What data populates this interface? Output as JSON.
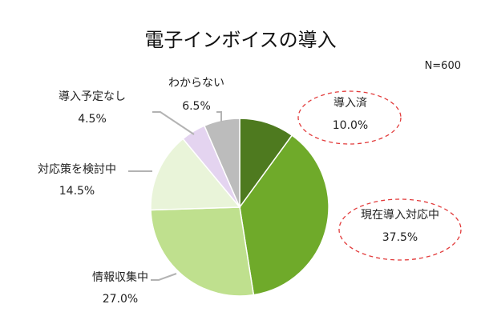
{
  "chart_data": {
    "type": "pie",
    "title": "電子インボイスの導入",
    "note": "N=600",
    "start_angle_deg": 0,
    "direction": "clockwise",
    "slices": [
      {
        "label": "導入済",
        "value": 10.0,
        "value_label": "10.0%",
        "color": "#4e7a1f",
        "highlight": true
      },
      {
        "label": "現在導入対応中",
        "value": 37.5,
        "value_label": "37.5%",
        "color": "#6faa2a",
        "highlight": true
      },
      {
        "label": "情報収集中",
        "value": 27.0,
        "value_label": "27.0%",
        "color": "#bfe08e",
        "highlight": false
      },
      {
        "label": "対応策を検討中",
        "value": 14.5,
        "value_label": "14.5%",
        "color": "#e9f4d9",
        "highlight": false
      },
      {
        "label": "導入予定なし",
        "value": 4.5,
        "value_label": "4.5%",
        "color": "#e4d4f0",
        "highlight": false
      },
      {
        "label": "わからない",
        "value": 6.5,
        "value_label": "6.5%",
        "color": "#bcbcbc",
        "highlight": false
      }
    ]
  }
}
